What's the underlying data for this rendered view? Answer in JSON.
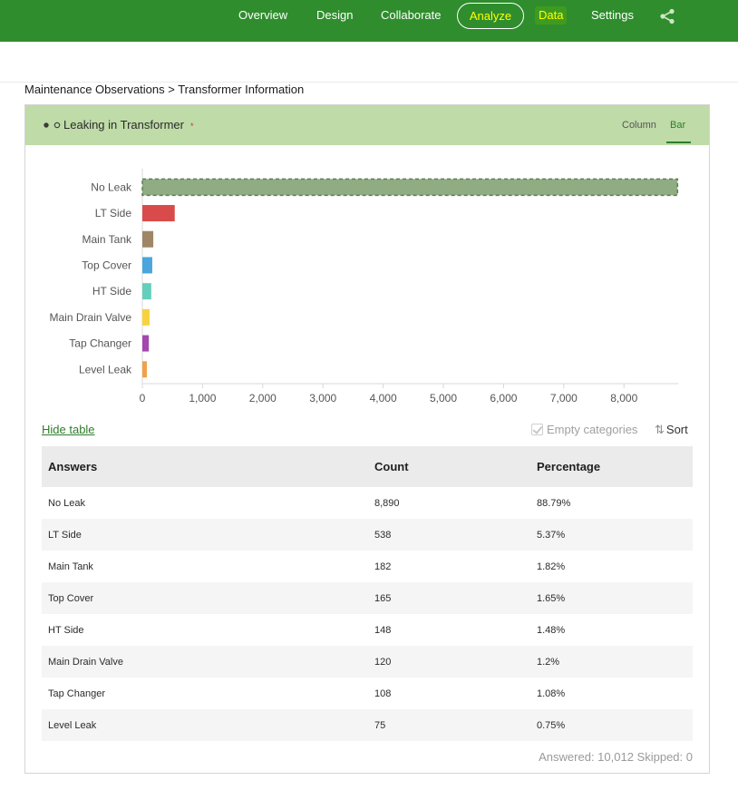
{
  "nav": {
    "items": [
      {
        "label": "Overview"
      },
      {
        "label": "Design"
      },
      {
        "label": "Collaborate"
      },
      {
        "label": "Analyze"
      },
      {
        "label": "Data"
      },
      {
        "label": "Settings"
      }
    ],
    "share_icon": "share-icon"
  },
  "breadcrumb": "Maintenance Observations > Transformer Information",
  "question": {
    "title": "Leaking in Transformer",
    "required_marker": "*",
    "view_tabs": [
      "Column",
      "Bar"
    ],
    "active_view": "Bar"
  },
  "chart_data": {
    "type": "bar",
    "orientation": "horizontal",
    "categories": [
      "No Leak",
      "LT Side",
      "Main Tank",
      "Top Cover",
      "HT Side",
      "Main Drain Valve",
      "Tap Changer",
      "Level Leak"
    ],
    "values": [
      8890,
      538,
      182,
      165,
      148,
      120,
      108,
      75
    ],
    "colors": [
      "#8fac83",
      "#d94a4a",
      "#a08566",
      "#4aa6dc",
      "#64cfbc",
      "#f7d23e",
      "#a448b0",
      "#f1a04a"
    ],
    "selected": "No Leak",
    "x_ticks": [
      "0",
      "1,000",
      "2,000",
      "3,000",
      "4,000",
      "5,000",
      "6,000",
      "7,000",
      "8,000"
    ],
    "xlim": [
      0,
      8900
    ]
  },
  "controls": {
    "hide_table": "Hide table",
    "empty_categories": "Empty categories",
    "sort": "Sort"
  },
  "table": {
    "headers": [
      "Answers",
      "Count",
      "Percentage"
    ],
    "rows": [
      [
        "No Leak",
        "8,890",
        "88.79%"
      ],
      [
        "LT Side",
        "538",
        "5.37%"
      ],
      [
        "Main Tank",
        "182",
        "1.82%"
      ],
      [
        "Top Cover",
        "165",
        "1.65%"
      ],
      [
        "HT Side",
        "148",
        "1.48%"
      ],
      [
        "Main Drain Valve",
        "120",
        "1.2%"
      ],
      [
        "Tap Changer",
        "108",
        "1.08%"
      ],
      [
        "Level Leak",
        "75",
        "0.75%"
      ]
    ]
  },
  "stats": {
    "answered": "Answered: 10,012",
    "skipped": "Skipped: 0"
  }
}
